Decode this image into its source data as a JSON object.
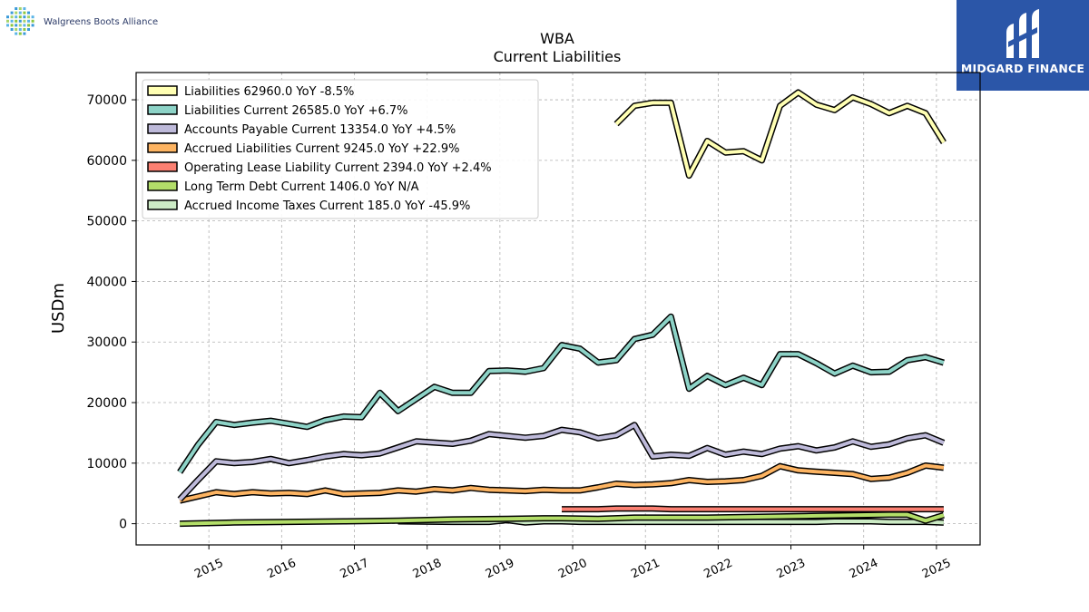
{
  "brand": {
    "company_name": "Walgreens Boots Alliance",
    "badge_text": "MIDGARD FINANCE",
    "badge_color": "#2b56a8"
  },
  "chart_data": {
    "type": "line",
    "title": "WBA",
    "subtitle": "Current  Liabilities",
    "ylabel": "USDm",
    "xlabel": "",
    "ylim": [
      -3500,
      74500
    ],
    "xlim": [
      2014.0,
      2025.6
    ],
    "yticks": [
      0,
      10000,
      20000,
      30000,
      40000,
      50000,
      60000,
      70000
    ],
    "yticks_labels": [
      "0",
      "10000",
      "20000",
      "30000",
      "40000",
      "50000",
      "60000",
      "70000"
    ],
    "xticks": [
      2015,
      2016,
      2017,
      2018,
      2019,
      2020,
      2021,
      2022,
      2023,
      2024,
      2025
    ],
    "xticks_labels": [
      "2015",
      "2016",
      "2017",
      "2018",
      "2019",
      "2020",
      "2021",
      "2022",
      "2023",
      "2024",
      "2025"
    ],
    "grid": true,
    "legend_position": "top-left",
    "series": [
      {
        "name": "Liabilities  62960.0 YoY -8.5%",
        "color": "#ffffb3",
        "x": [
          2020.6,
          2020.85,
          2021.1,
          2021.35,
          2021.6,
          2021.85,
          2022.1,
          2022.35,
          2022.6,
          2022.85,
          2023.1,
          2023.35,
          2023.6,
          2023.85,
          2024.1,
          2024.35,
          2024.6,
          2024.85,
          2025.1
        ],
        "values": [
          66000,
          69000,
          69500,
          69500,
          57500,
          63200,
          61300,
          61500,
          60000,
          69000,
          71200,
          69200,
          68300,
          70400,
          69300,
          67800,
          69000,
          67800,
          62960
        ]
      },
      {
        "name": "Liabilities Current  26585.0 YoY +6.7%",
        "color": "#8dd3c7",
        "x": [
          2014.6,
          2014.85,
          2015.1,
          2015.35,
          2015.6,
          2015.85,
          2016.1,
          2016.35,
          2016.6,
          2016.85,
          2017.1,
          2017.35,
          2017.6,
          2017.85,
          2018.1,
          2018.35,
          2018.6,
          2018.85,
          2019.1,
          2019.35,
          2019.6,
          2019.85,
          2020.1,
          2020.35,
          2020.6,
          2020.85,
          2021.1,
          2021.35,
          2021.6,
          2021.85,
          2022.1,
          2022.35,
          2022.6,
          2022.85,
          2023.1,
          2023.35,
          2023.6,
          2023.85,
          2024.1,
          2024.35,
          2024.6,
          2024.85,
          2025.1
        ],
        "values": [
          8500,
          13000,
          16800,
          16300,
          16700,
          17000,
          16500,
          16000,
          17100,
          17700,
          17600,
          21600,
          18600,
          20600,
          22600,
          21600,
          21600,
          25200,
          25300,
          25100,
          25700,
          29500,
          28900,
          26600,
          27000,
          30500,
          31200,
          34200,
          22300,
          24400,
          22900,
          24100,
          22900,
          28000,
          28000,
          26500,
          24800,
          26100,
          25000,
          25100,
          27000,
          27500,
          26585
        ]
      },
      {
        "name": "Accounts Payable Current  13354.0 YoY +4.5%",
        "color": "#bebada",
        "x": [
          2014.6,
          2014.85,
          2015.1,
          2015.35,
          2015.6,
          2015.85,
          2016.1,
          2016.35,
          2016.6,
          2016.85,
          2017.1,
          2017.35,
          2017.6,
          2017.85,
          2018.1,
          2018.35,
          2018.6,
          2018.85,
          2019.1,
          2019.35,
          2019.6,
          2019.85,
          2020.1,
          2020.35,
          2020.6,
          2020.85,
          2021.1,
          2021.35,
          2021.6,
          2021.85,
          2022.1,
          2022.35,
          2022.6,
          2022.85,
          2023.1,
          2023.35,
          2023.6,
          2023.85,
          2024.1,
          2024.35,
          2024.6,
          2024.85,
          2025.1
        ],
        "values": [
          4000,
          7200,
          10300,
          10000,
          10200,
          10700,
          10000,
          10500,
          11100,
          11500,
          11300,
          11600,
          12600,
          13600,
          13400,
          13200,
          13700,
          14800,
          14500,
          14200,
          14500,
          15500,
          15100,
          14100,
          14600,
          16300,
          11100,
          11400,
          11200,
          12500,
          11400,
          11900,
          11500,
          12400,
          12800,
          12100,
          12600,
          13600,
          12700,
          13100,
          14100,
          14600,
          13354
        ]
      },
      {
        "name": "Accrued Liabilities Current  9245.0 YoY +22.9%",
        "color": "#fdb462",
        "x": [
          2014.6,
          2014.85,
          2015.1,
          2015.35,
          2015.6,
          2015.85,
          2016.1,
          2016.35,
          2016.6,
          2016.85,
          2017.1,
          2017.35,
          2017.6,
          2017.85,
          2018.1,
          2018.35,
          2018.6,
          2018.85,
          2019.1,
          2019.35,
          2019.6,
          2019.85,
          2020.1,
          2020.35,
          2020.6,
          2020.85,
          2021.1,
          2021.35,
          2021.6,
          2021.85,
          2022.1,
          2022.35,
          2022.6,
          2022.85,
          2023.1,
          2023.35,
          2023.6,
          2023.85,
          2024.1,
          2024.35,
          2024.6,
          2024.85,
          2025.1
        ],
        "values": [
          3800,
          4500,
          5200,
          4900,
          5200,
          5000,
          5100,
          4900,
          5500,
          4900,
          5000,
          5100,
          5500,
          5300,
          5700,
          5500,
          5900,
          5600,
          5500,
          5400,
          5600,
          5500,
          5500,
          6000,
          6600,
          6400,
          6500,
          6700,
          7200,
          6900,
          7000,
          7200,
          7900,
          9500,
          8800,
          8600,
          8400,
          8200,
          7400,
          7600,
          8400,
          9600,
          9245
        ]
      },
      {
        "name": "Operating Lease Liability Current  2394.0 YoY +2.4%",
        "color": "#fb8072",
        "x": [
          2019.85,
          2020.1,
          2020.35,
          2020.6,
          2020.85,
          2021.1,
          2021.35,
          2021.6,
          2021.85,
          2022.1,
          2022.35,
          2022.6,
          2022.85,
          2023.1,
          2023.35,
          2023.6,
          2023.85,
          2024.1,
          2024.35,
          2024.6,
          2024.85,
          2025.1
        ],
        "values": [
          2400,
          2400,
          2400,
          2500,
          2500,
          2500,
          2400,
          2400,
          2400,
          2400,
          2400,
          2400,
          2400,
          2400,
          2400,
          2400,
          2400,
          2400,
          2400,
          2400,
          2400,
          2394
        ]
      },
      {
        "name": "Long Term Debt Current  1406.0 YoY N/A",
        "color": "#b3de69",
        "x": [
          2014.6,
          2015.35,
          2016.1,
          2016.85,
          2017.6,
          2018.35,
          2019.1,
          2019.6,
          2019.85,
          2020.35,
          2020.85,
          2021.35,
          2021.85,
          2022.35,
          2022.85,
          2023.35,
          2023.85,
          2024.35,
          2024.6,
          2024.85,
          2025.1
        ],
        "values": [
          0,
          200,
          300,
          400,
          500,
          700,
          800,
          900,
          900,
          800,
          1000,
          1000,
          1000,
          1100,
          1200,
          1300,
          1400,
          1500,
          1500,
          500,
          1406
        ]
      },
      {
        "name": "Accrued Income Taxes Current  185.0 YoY -45.9%",
        "color": "#ccebc5",
        "x": [
          2017.6,
          2018.35,
          2018.85,
          2019.1,
          2019.35,
          2019.6,
          2019.85,
          2020.1,
          2020.35,
          2020.6,
          2020.85,
          2021.1,
          2021.35,
          2021.6,
          2021.85,
          2022.1,
          2022.35,
          2022.6,
          2022.85,
          2023.1,
          2023.35,
          2023.6,
          2023.85,
          2024.1,
          2024.35,
          2024.6,
          2024.85,
          2025.1
        ],
        "values": [
          400,
          300,
          300,
          600,
          200,
          400,
          400,
          300,
          300,
          300,
          300,
          300,
          300,
          300,
          300,
          300,
          300,
          300,
          300,
          300,
          300,
          400,
          400,
          400,
          300,
          300,
          300,
          185
        ]
      }
    ]
  }
}
